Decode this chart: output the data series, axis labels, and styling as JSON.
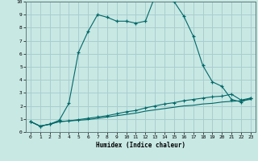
{
  "xlabel": "Humidex (Indice chaleur)",
  "xlim": [
    -0.5,
    23.5
  ],
  "ylim": [
    0,
    10
  ],
  "yticks": [
    0,
    1,
    2,
    3,
    4,
    5,
    6,
    7,
    8,
    9,
    10
  ],
  "xticks": [
    0,
    1,
    2,
    3,
    4,
    5,
    6,
    7,
    8,
    9,
    10,
    11,
    12,
    13,
    14,
    15,
    16,
    17,
    18,
    19,
    20,
    21,
    22,
    23
  ],
  "background_color": "#c8e8e4",
  "grid_color": "#aacece",
  "line_color": "#006868",
  "line1_x": [
    0,
    1,
    2,
    3,
    4,
    5,
    6,
    7,
    8,
    9,
    10,
    11,
    12,
    13,
    14,
    15,
    16,
    17,
    18,
    19,
    20,
    21,
    22,
    23
  ],
  "line1_y": [
    0.8,
    0.45,
    0.6,
    0.9,
    2.2,
    6.1,
    7.7,
    9.0,
    8.8,
    8.5,
    8.5,
    8.35,
    8.5,
    10.4,
    10.35,
    10.0,
    8.9,
    7.35,
    5.1,
    3.85,
    3.5,
    2.5,
    2.3,
    2.6
  ],
  "line2_x": [
    0,
    1,
    2,
    3,
    4,
    5,
    6,
    7,
    8,
    9,
    10,
    11,
    12,
    13,
    14,
    15,
    16,
    17,
    18,
    19,
    20,
    21,
    22,
    23
  ],
  "line2_y": [
    0.8,
    0.45,
    0.6,
    0.8,
    0.85,
    0.95,
    1.05,
    1.15,
    1.25,
    1.4,
    1.55,
    1.65,
    1.85,
    2.0,
    2.15,
    2.25,
    2.4,
    2.5,
    2.6,
    2.7,
    2.75,
    2.9,
    2.45,
    2.6
  ],
  "line3_x": [
    0,
    1,
    2,
    3,
    4,
    5,
    6,
    7,
    8,
    9,
    10,
    11,
    12,
    13,
    14,
    15,
    16,
    17,
    18,
    19,
    20,
    21,
    22,
    23
  ],
  "line3_y": [
    0.8,
    0.45,
    0.6,
    0.8,
    0.85,
    0.9,
    0.95,
    1.05,
    1.15,
    1.25,
    1.35,
    1.45,
    1.6,
    1.7,
    1.8,
    1.9,
    2.0,
    2.05,
    2.15,
    2.2,
    2.3,
    2.35,
    2.4,
    2.5
  ]
}
